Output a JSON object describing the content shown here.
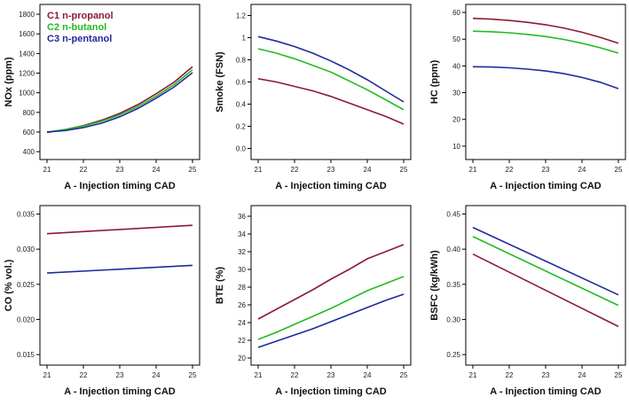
{
  "colors": {
    "propanol": "#8b1a3a",
    "butanol": "#22bb22",
    "pentanol": "#1f2a9c"
  },
  "legend": [
    {
      "label": "C1 n-propanol",
      "color": "#8b1a3a"
    },
    {
      "label": "C2 n-butanol",
      "color": "#22bb22"
    },
    {
      "label": "C3 n-pentanol",
      "color": "#1f2a9c"
    }
  ],
  "chart_data": [
    {
      "id": "nox",
      "type": "line",
      "xlabel": "A - Injection timing CAD",
      "ylabel": "NOx (ppm)",
      "xlim": [
        21,
        25
      ],
      "ylim": [
        320,
        1900
      ],
      "xticks": [
        21,
        22,
        23,
        24,
        25
      ],
      "yticks": [
        400,
        600,
        800,
        1000,
        1200,
        1400,
        1600,
        1800
      ],
      "x": [
        21,
        21.5,
        22,
        22.5,
        23,
        23.5,
        24,
        24.5,
        25
      ],
      "series": [
        {
          "name": "C1 n-propanol",
          "color": "#8b1a3a",
          "y": [
            595,
            625,
            665,
            720,
            790,
            880,
            990,
            1110,
            1265
          ]
        },
        {
          "name": "C2 n-butanol",
          "color": "#22bb22",
          "y": [
            600,
            625,
            660,
            710,
            775,
            860,
            965,
            1085,
            1235
          ]
        },
        {
          "name": "C3 n-pentanol",
          "color": "#1f2a9c",
          "y": [
            600,
            615,
            645,
            690,
            755,
            840,
            945,
            1060,
            1205
          ]
        }
      ]
    },
    {
      "id": "smoke",
      "type": "line",
      "xlabel": "A - Injection timing CAD",
      "ylabel": "Smoke    (FSN)",
      "xlim": [
        21,
        25
      ],
      "ylim": [
        -0.1,
        1.3
      ],
      "xticks": [
        21,
        22,
        23,
        24,
        25
      ],
      "yticks": [
        0.0,
        0.2,
        0.4,
        0.6,
        0.8,
        1.0,
        1.2
      ],
      "x": [
        21,
        21.5,
        22,
        22.5,
        23,
        23.5,
        24,
        24.5,
        25
      ],
      "series": [
        {
          "name": "C1 n-propanol",
          "color": "#8b1a3a",
          "y": [
            0.63,
            0.6,
            0.56,
            0.52,
            0.47,
            0.41,
            0.35,
            0.29,
            0.22
          ]
        },
        {
          "name": "C2 n-butanol",
          "color": "#22bb22",
          "y": [
            0.9,
            0.86,
            0.81,
            0.75,
            0.69,
            0.61,
            0.53,
            0.44,
            0.35
          ]
        },
        {
          "name": "C3 n-pentanol",
          "color": "#1f2a9c",
          "y": [
            1.01,
            0.97,
            0.92,
            0.86,
            0.79,
            0.71,
            0.62,
            0.52,
            0.42
          ]
        }
      ]
    },
    {
      "id": "hc",
      "type": "line",
      "xlabel": "A - Injection timing CAD",
      "ylabel": "HC    (ppm)",
      "xlim": [
        21,
        25
      ],
      "ylim": [
        5,
        63
      ],
      "xticks": [
        21,
        22,
        23,
        24,
        25
      ],
      "yticks": [
        10,
        20,
        30,
        40,
        50,
        60
      ],
      "x": [
        21,
        21.5,
        22,
        22.5,
        23,
        23.5,
        24,
        24.5,
        25
      ],
      "series": [
        {
          "name": "C1 n-propanol",
          "color": "#8b1a3a",
          "y": [
            57.8,
            57.5,
            57.0,
            56.3,
            55.4,
            54.2,
            52.6,
            50.7,
            48.5
          ]
        },
        {
          "name": "C2 n-butanol",
          "color": "#22bb22",
          "y": [
            53.0,
            52.8,
            52.4,
            51.8,
            51.0,
            49.9,
            48.5,
            46.8,
            44.8
          ]
        },
        {
          "name": "C3 n-pentanol",
          "color": "#1f2a9c",
          "y": [
            39.7,
            39.6,
            39.3,
            38.8,
            38.1,
            37.1,
            35.7,
            33.9,
            31.5
          ]
        }
      ]
    },
    {
      "id": "co",
      "type": "line",
      "xlabel": "A - Injection timing CAD",
      "ylabel": "CO (% vol.)",
      "xlim": [
        21,
        25
      ],
      "ylim": [
        0.0135,
        0.0362
      ],
      "xticks": [
        21,
        22,
        23,
        24,
        25
      ],
      "yticks": [
        0.015,
        0.02,
        0.025,
        0.03,
        0.035
      ],
      "ytickLabels": [
        "0.015",
        "0.020",
        "0.025",
        "0.030",
        "0.035"
      ],
      "x": [
        21,
        25
      ],
      "series": [
        {
          "name": "C1 n-propanol",
          "color": "#8b1a3a",
          "y": [
            0.0322,
            0.0334
          ]
        },
        {
          "name": "C3 n-pentanol",
          "color": "#1f2a9c",
          "y": [
            0.0266,
            0.0277
          ]
        }
      ]
    },
    {
      "id": "bte",
      "type": "line",
      "xlabel": "A - Injection timing CAD",
      "ylabel": "BTE (%)",
      "xlim": [
        21,
        25
      ],
      "ylim": [
        19.2,
        37.2
      ],
      "xticks": [
        21,
        22,
        23,
        24,
        25
      ],
      "yticks": [
        20,
        22,
        24,
        26,
        28,
        30,
        32,
        34,
        36
      ],
      "x": [
        21,
        21.5,
        22,
        22.5,
        23,
        23.5,
        24,
        24.5,
        25
      ],
      "series": [
        {
          "name": "C1 n-propanol",
          "color": "#8b1a3a",
          "y": [
            24.4,
            25.5,
            26.6,
            27.7,
            28.9,
            30.0,
            31.2,
            32.0,
            32.8
          ]
        },
        {
          "name": "C2 n-butanol",
          "color": "#22bb22",
          "y": [
            22.1,
            22.9,
            23.8,
            24.7,
            25.6,
            26.6,
            27.6,
            28.4,
            29.2
          ]
        },
        {
          "name": "C3 n-pentanol",
          "color": "#1f2a9c",
          "y": [
            21.2,
            21.9,
            22.6,
            23.3,
            24.1,
            24.9,
            25.7,
            26.5,
            27.2
          ]
        }
      ]
    },
    {
      "id": "bsfc",
      "type": "line",
      "xlabel": "A - Injection timing CAD",
      "ylabel": "BSFC (kg/kWh)",
      "xlim": [
        21,
        25
      ],
      "ylim": [
        0.235,
        0.462
      ],
      "xticks": [
        21,
        22,
        23,
        24,
        25
      ],
      "yticks": [
        0.25,
        0.3,
        0.35,
        0.4,
        0.45
      ],
      "ytickLabels": [
        "0.25",
        "0.30",
        "0.35",
        "0.40",
        "0.45"
      ],
      "x": [
        21,
        25
      ],
      "series": [
        {
          "name": "C1 n-propanol",
          "color": "#8b1a3a",
          "y": [
            0.393,
            0.29
          ]
        },
        {
          "name": "C2 n-butanol",
          "color": "#22bb22",
          "y": [
            0.418,
            0.32
          ]
        },
        {
          "name": "C3 n-pentanol",
          "color": "#1f2a9c",
          "y": [
            0.431,
            0.335
          ]
        }
      ]
    }
  ]
}
